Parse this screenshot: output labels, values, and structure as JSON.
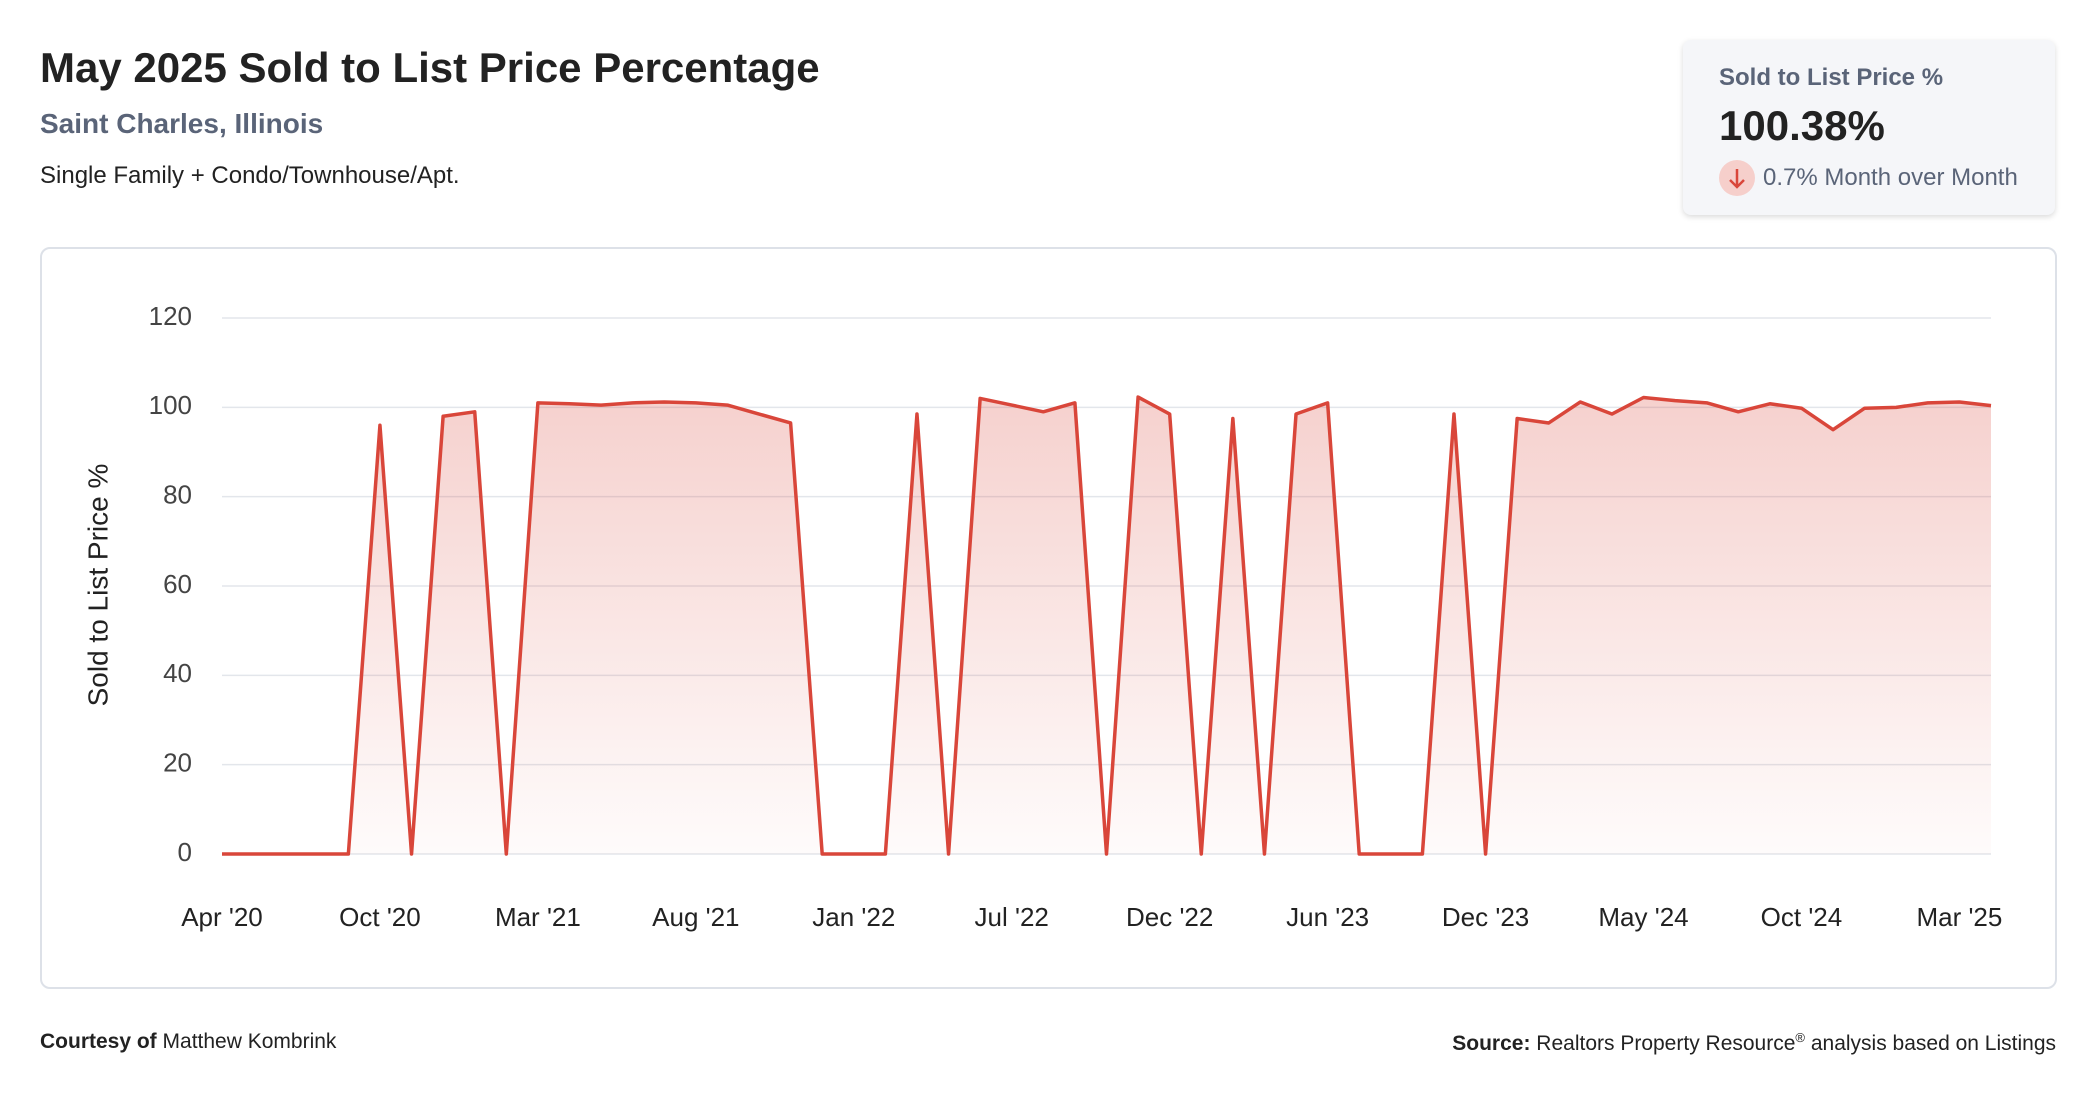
{
  "header": {
    "title": "May 2025 Sold to List Price Percentage",
    "location": "Saint Charles, Illinois",
    "property_types": "Single Family + Condo/Townhouse/Apt."
  },
  "kpi": {
    "label": "Sold to List Price %",
    "value": "100.38%",
    "change": "0.7% Month over Month"
  },
  "footer": {
    "courtesy_label": "Courtesy of",
    "courtesy_name": "Matthew Kombrink",
    "source_label": "Source:",
    "source_text": "Realtors Property Resource",
    "source_mark": "®",
    "source_rest": "analysis based on Listings"
  },
  "chart_data": {
    "type": "line",
    "y_label": "Sold to List Price %",
    "color": "#d9463a",
    "grid": true,
    "categories": [
      "Apr '20",
      null,
      null,
      null,
      null,
      "Oct '20",
      null,
      null,
      null,
      null,
      "Mar '21",
      null,
      null,
      null,
      null,
      "Aug '21",
      null,
      null,
      null,
      null,
      "Jan '22",
      null,
      null,
      null,
      null,
      "Jul '22",
      null,
      null,
      null,
      null,
      "Dec '22",
      null,
      null,
      null,
      null,
      "Jun '23",
      null,
      null,
      null,
      null,
      "Dec '23",
      null,
      null,
      null,
      null,
      "May '24",
      null,
      null,
      null,
      null,
      "Oct '24",
      null,
      null,
      null,
      null,
      "Mar '25",
      null
    ],
    "values": [
      0,
      0,
      0,
      0,
      0,
      96,
      0,
      98,
      99,
      0,
      101,
      100.8,
      100.5,
      101,
      101.2,
      101,
      100.5,
      98.5,
      96.5,
      0,
      0,
      0,
      98.5,
      0,
      102,
      100.5,
      99,
      101,
      0,
      102.3,
      98.5,
      0,
      97.5,
      0,
      98.5,
      101,
      0,
      0,
      0,
      98.5,
      0,
      97.5,
      96.5,
      101.2,
      98.5,
      102.2,
      101.5,
      101,
      99,
      100.8,
      99.8,
      95,
      99.8,
      100,
      101,
      101.2,
      100.38
    ],
    "ylim": [
      0,
      120
    ],
    "yticks": [
      0,
      20,
      40,
      60,
      80,
      100,
      120
    ]
  }
}
